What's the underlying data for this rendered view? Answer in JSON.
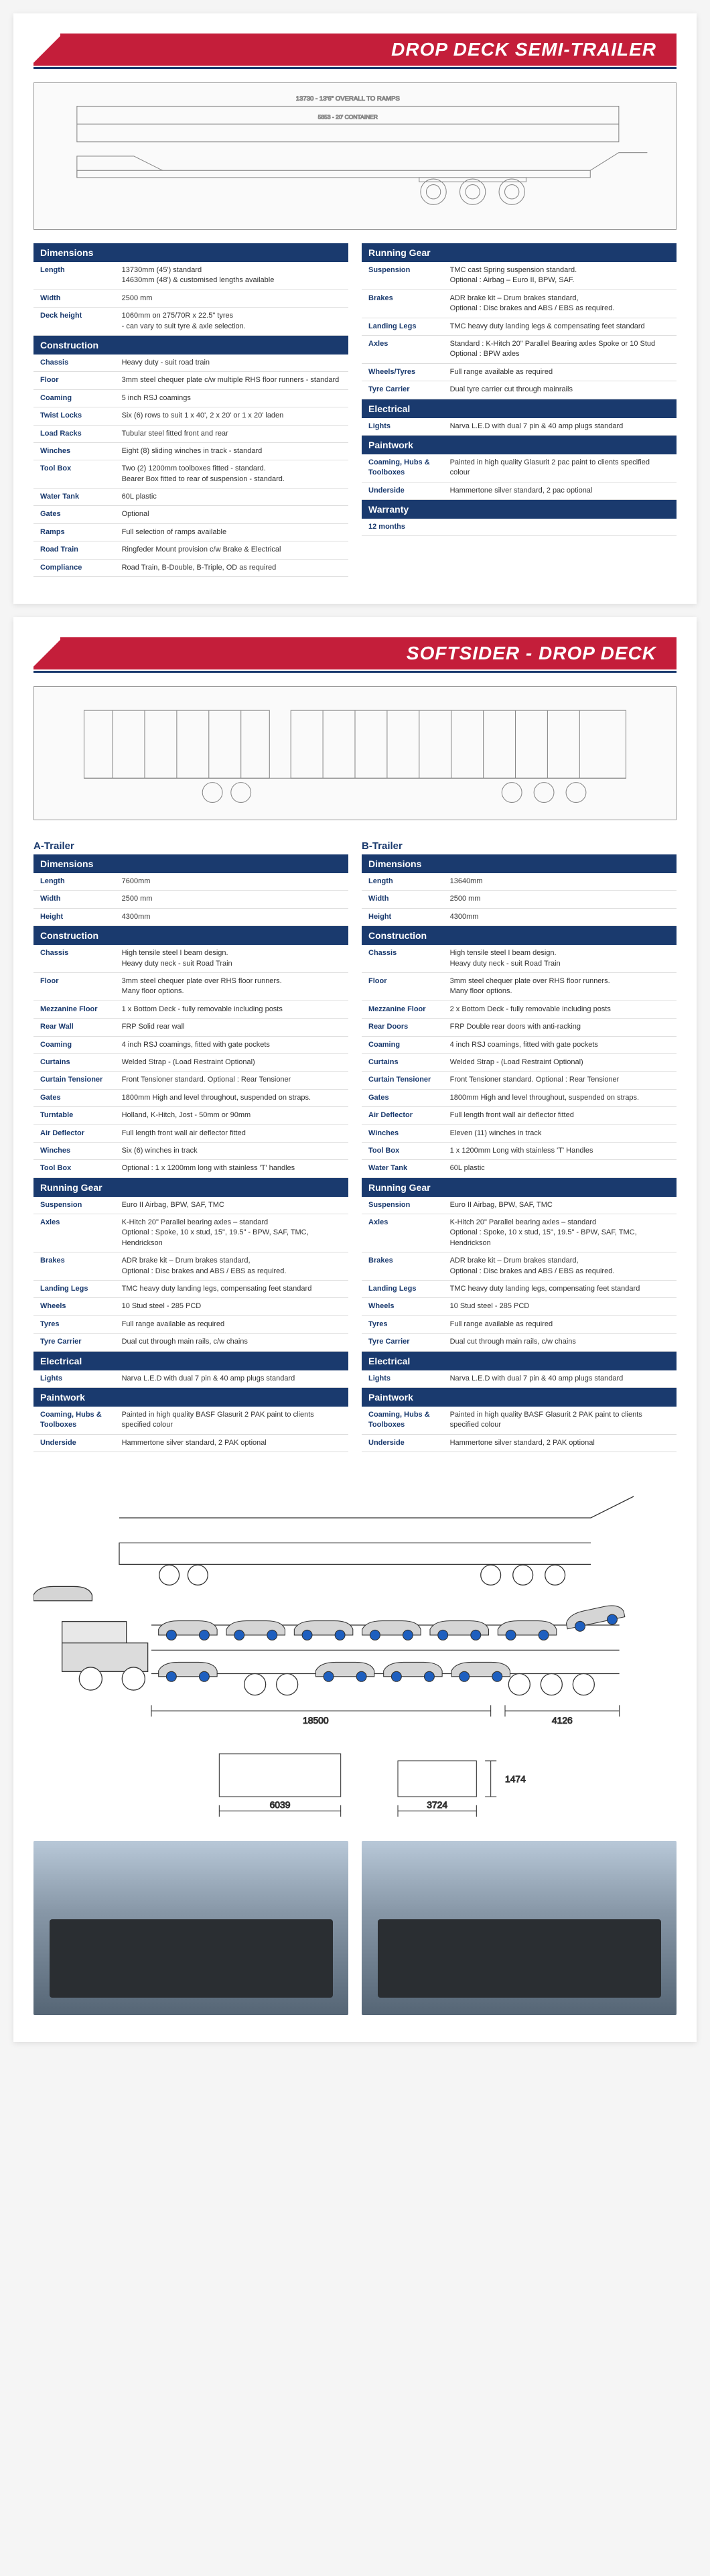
{
  "page1": {
    "title": "DROP DECK SEMI-TRAILER",
    "left": [
      {
        "type": "header",
        "text": "Dimensions"
      },
      {
        "label": "Length",
        "value": "13730mm (45') standard\n14630mm (48') & customised lengths available"
      },
      {
        "label": "Width",
        "value": "2500 mm"
      },
      {
        "label": "Deck height",
        "value": "1060mm on 275/70R x 22.5\" tyres\n- can vary to suit tyre & axle selection."
      },
      {
        "type": "header",
        "text": "Construction"
      },
      {
        "label": "Chassis",
        "value": "Heavy duty - suit road train"
      },
      {
        "label": "Floor",
        "value": "3mm steel chequer plate c/w multiple RHS floor runners - standard"
      },
      {
        "label": "Coaming",
        "value": "5 inch RSJ coamings"
      },
      {
        "label": "Twist Locks",
        "value": "Six (6) rows to suit 1 x 40', 2 x 20' or 1 x 20' laden"
      },
      {
        "label": "Load Racks",
        "value": "Tubular steel fitted front and rear"
      },
      {
        "label": "Winches",
        "value": "Eight (8) sliding winches in track - standard"
      },
      {
        "label": "Tool Box",
        "value": "Two (2) 1200mm toolboxes fitted - standard.\nBearer Box fitted to rear of suspension - standard."
      },
      {
        "label": "Water Tank",
        "value": "60L plastic"
      },
      {
        "label": "Gates",
        "value": "Optional"
      },
      {
        "label": "Ramps",
        "value": "Full selection of ramps available"
      },
      {
        "label": "Road Train",
        "value": "Ringfeder Mount provision c/w Brake & Electrical"
      },
      {
        "label": "Compliance",
        "value": "Road Train, B-Double, B-Triple, OD as required"
      }
    ],
    "right": [
      {
        "type": "header",
        "text": "Running Gear"
      },
      {
        "label": "Suspension",
        "value": "TMC cast Spring suspension standard.\nOptional : Airbag – Euro II, BPW, SAF."
      },
      {
        "label": "Brakes",
        "value": "ADR brake kit – Drum brakes standard,\nOptional : Disc brakes and ABS / EBS as required."
      },
      {
        "label": "Landing Legs",
        "value": "TMC heavy duty landing legs & compensating feet standard"
      },
      {
        "label": "Axles",
        "value": "Standard : K-Hitch 20\" Parallel Bearing axles Spoke or 10 Stud\nOptional : BPW axles"
      },
      {
        "label": "Wheels/Tyres",
        "value": "Full range available as required"
      },
      {
        "label": "Tyre Carrier",
        "value": "Dual tyre carrier cut through mainrails"
      },
      {
        "type": "header",
        "text": "Electrical"
      },
      {
        "label": "Lights",
        "value": "Narva L.E.D with dual 7 pin & 40 amp plugs standard"
      },
      {
        "type": "header",
        "text": "Paintwork"
      },
      {
        "label": "Coaming, Hubs & Toolboxes",
        "value": "Painted in high quality Glasurit 2 pac paint to clients specified colour"
      },
      {
        "label": "Underside",
        "value": "Hammertone silver standard, 2 pac optional"
      },
      {
        "type": "header",
        "text": "Warranty"
      },
      {
        "label": "12 months",
        "value": ""
      }
    ]
  },
  "page2": {
    "title": "SOFTSIDER - DROP DECK",
    "aTitle": "A-Trailer",
    "bTitle": "B-Trailer",
    "a": [
      {
        "type": "header",
        "text": "Dimensions"
      },
      {
        "label": "Length",
        "value": "7600mm"
      },
      {
        "label": "Width",
        "value": "2500 mm"
      },
      {
        "label": "Height",
        "value": "4300mm"
      },
      {
        "type": "header",
        "text": "Construction"
      },
      {
        "label": "Chassis",
        "value": "High tensile steel I beam design.\nHeavy duty neck - suit Road Train"
      },
      {
        "label": "Floor",
        "value": "3mm steel chequer plate over RHS floor runners.\nMany floor options."
      },
      {
        "label": "Mezzanine Floor",
        "value": "1 x Bottom Deck - fully removable including posts"
      },
      {
        "label": "Rear Wall",
        "value": "FRP Solid rear wall"
      },
      {
        "label": "Coaming",
        "value": "4 inch RSJ coamings, fitted with gate pockets"
      },
      {
        "label": "Curtains",
        "value": "Welded Strap - (Load Restraint Optional)"
      },
      {
        "label": "Curtain Tensioner",
        "value": "Front Tensioner standard. Optional : Rear Tensioner"
      },
      {
        "label": "Gates",
        "value": "1800mm High and level throughout, suspended on straps."
      },
      {
        "label": "Turntable",
        "value": "Holland, K-Hitch, Jost - 50mm or 90mm"
      },
      {
        "label": "Air Deflector",
        "value": "Full length front wall air deflector fitted"
      },
      {
        "label": "Winches",
        "value": "Six (6) winches in track"
      },
      {
        "label": "Tool Box",
        "value": "Optional : 1 x 1200mm long with stainless 'T' handles"
      },
      {
        "type": "header",
        "text": "Running Gear"
      },
      {
        "label": "Suspension",
        "value": "Euro II Airbag, BPW, SAF, TMC"
      },
      {
        "label": "Axles",
        "value": "K-Hitch 20\" Parallel bearing axles – standard\nOptional : Spoke, 10 x stud, 15\", 19.5\" - BPW, SAF, TMC, Hendrickson"
      },
      {
        "label": "Brakes",
        "value": "ADR brake kit – Drum brakes standard,\nOptional : Disc brakes and ABS / EBS as required."
      },
      {
        "label": "Landing Legs",
        "value": "TMC heavy duty landing legs, compensating feet standard"
      },
      {
        "label": "Wheels",
        "value": "10 Stud steel - 285 PCD"
      },
      {
        "label": "Tyres",
        "value": "Full range available as required"
      },
      {
        "label": "Tyre Carrier",
        "value": "Dual cut through main rails, c/w chains"
      },
      {
        "type": "header",
        "text": "Electrical"
      },
      {
        "label": "Lights",
        "value": "Narva L.E.D with dual 7 pin & 40 amp plugs standard"
      },
      {
        "type": "header",
        "text": "Paintwork"
      },
      {
        "label": "Coaming, Hubs & Toolboxes",
        "value": "Painted in high quality BASF Glasurit 2 PAK paint to clients specified colour"
      },
      {
        "label": "Underside",
        "value": "Hammertone silver standard, 2 PAK optional"
      }
    ],
    "b": [
      {
        "type": "header",
        "text": "Dimensions"
      },
      {
        "label": "Length",
        "value": "13640mm"
      },
      {
        "label": "Width",
        "value": "2500 mm"
      },
      {
        "label": "Height",
        "value": "4300mm"
      },
      {
        "type": "header",
        "text": "Construction"
      },
      {
        "label": "Chassis",
        "value": "High tensile steel I beam design.\nHeavy duty neck - suit Road Train"
      },
      {
        "label": "Floor",
        "value": "3mm steel chequer plate over RHS floor runners.\nMany floor options."
      },
      {
        "label": "Mezzanine Floor",
        "value": "2 x Bottom Deck - fully removable including posts"
      },
      {
        "label": "Rear Doors",
        "value": "FRP Double rear doors with anti-racking"
      },
      {
        "label": "Coaming",
        "value": "4 inch RSJ coamings, fitted with gate pockets"
      },
      {
        "label": "Curtains",
        "value": "Welded Strap - (Load Restraint Optional)"
      },
      {
        "label": "Curtain Tensioner",
        "value": "Front Tensioner standard. Optional : Rear Tensioner"
      },
      {
        "label": "Gates",
        "value": "1800mm High and level throughout, suspended on straps."
      },
      {
        "label": "Air Deflector",
        "value": "Full length front wall air deflector fitted"
      },
      {
        "label": "Winches",
        "value": "Eleven (11) winches in track"
      },
      {
        "label": "Tool Box",
        "value": "1 x 1200mm Long with stainless 'T' Handles"
      },
      {
        "label": "Water Tank",
        "value": "60L plastic"
      },
      {
        "type": "header",
        "text": "Running Gear"
      },
      {
        "label": "Suspension",
        "value": "Euro II Airbag, BPW, SAF, TMC"
      },
      {
        "label": "Axles",
        "value": "K-Hitch 20\" Parallel bearing axles – standard\nOptional : Spoke, 10 x stud, 15\", 19.5\" - BPW, SAF, TMC, Hendrickson"
      },
      {
        "label": "Brakes",
        "value": "ADR brake kit – Drum brakes standard,\nOptional : Disc brakes and ABS / EBS as required."
      },
      {
        "label": "Landing Legs",
        "value": "TMC heavy duty landing legs, compensating feet standard"
      },
      {
        "label": "Wheels",
        "value": "10 Stud steel - 285 PCD"
      },
      {
        "label": "Tyres",
        "value": "Full range available as required"
      },
      {
        "label": "Tyre Carrier",
        "value": "Dual cut through main rails, c/w chains"
      },
      {
        "type": "header",
        "text": "Electrical"
      },
      {
        "label": "Lights",
        "value": "Narva L.E.D with dual 7 pin & 40 amp plugs standard"
      },
      {
        "type": "header",
        "text": "Paintwork"
      },
      {
        "label": "Coaming, Hubs & Toolboxes",
        "value": "Painted in high quality BASF Glasurit 2 PAK paint to clients specified colour"
      },
      {
        "label": "Underside",
        "value": "Hammertone silver standard, 2 PAK optional"
      }
    ],
    "carCarrierDims": {
      "d1": "18500",
      "d2": "4126",
      "d3": "6039",
      "d4": "3724",
      "d5": "1474"
    }
  }
}
